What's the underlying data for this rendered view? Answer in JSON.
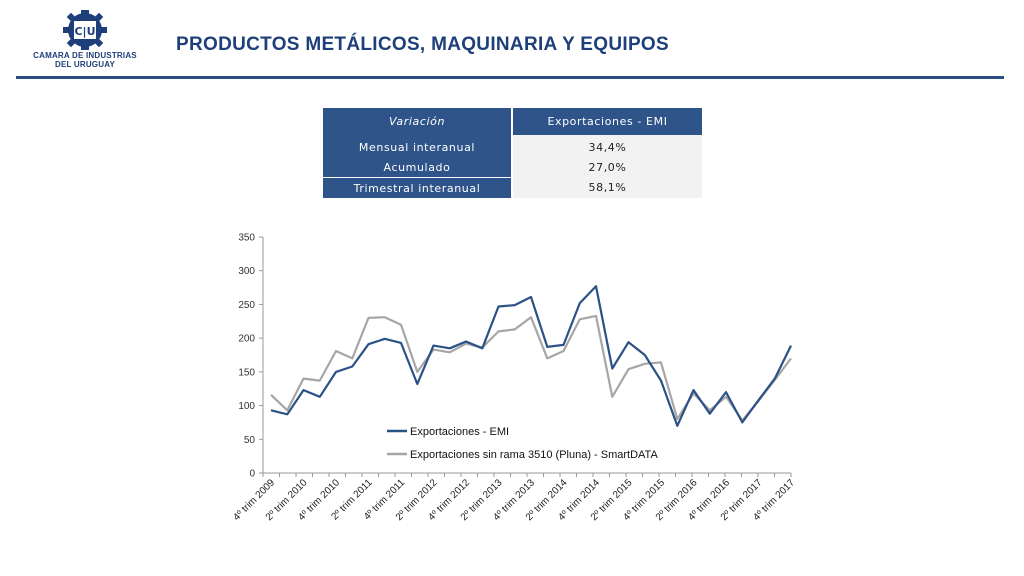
{
  "header": {
    "logo_mark": "C|U",
    "logo_line1": "CAMARA DE INDUSTRIAS",
    "logo_line2": "DEL URUGUAY",
    "title": "PRODUCTOS METÁLICOS, MAQUINARIA Y EQUIPOS",
    "accent_color": "#1f3f7a"
  },
  "table": {
    "col1_header": "Variación",
    "col2_header": "Exportaciones - EMI",
    "rows": [
      {
        "label": "Mensual interanual",
        "value": "34,4%"
      },
      {
        "label": "Acumulado",
        "value": "27,0%"
      },
      {
        "label": "Trimestral interanual",
        "value": "58,1%"
      }
    ]
  },
  "chart_data": {
    "type": "line",
    "x": [
      "4º trim 2009",
      "1º trim 2010",
      "2º trim 2010",
      "3º trim 2010",
      "4º trim 2010",
      "1º trim 2011",
      "2º trim 2011",
      "3º trim 2011",
      "4º trim 2011",
      "1º trim 2012",
      "2º trim 2012",
      "3º trim 2012",
      "4º trim 2012",
      "1º trim 2013",
      "2º trim 2013",
      "3º trim 2013",
      "4º trim 2013",
      "1º trim 2014",
      "2º trim 2014",
      "3º trim 2014",
      "4º trim 2014",
      "1º trim 2015",
      "2º trim 2015",
      "3º trim 2015",
      "4º trim 2015",
      "1º trim 2016",
      "2º trim 2016",
      "3º trim 2016",
      "4º trim 2016",
      "1º trim 2017",
      "2º trim 2017",
      "3º trim 2017",
      "4º trim 2017"
    ],
    "tick_labels": [
      "4º trim 2009",
      "2º trim 2010",
      "4º trim 2010",
      "2º trim 2011",
      "4º trim 2011",
      "2º trim 2012",
      "4º trim 2012",
      "2º trim 2013",
      "4º trim 2013",
      "2º trim 2014",
      "4º trim 2014",
      "2º trim 2015",
      "4º trim 2015",
      "2º trim 2016",
      "4º trim 2016",
      "2º trim 2017",
      "4º trim 2017"
    ],
    "series": [
      {
        "name": "Exportaciones - EMI",
        "color": "#2b5286",
        "values": [
          93,
          87,
          123,
          113,
          150,
          158,
          191,
          199,
          193,
          132,
          189,
          185,
          195,
          185,
          247,
          249,
          261,
          187,
          190,
          252,
          277,
          155,
          194,
          175,
          137,
          70,
          123,
          88,
          120,
          75,
          108,
          140,
          189
        ]
      },
      {
        "name": "Exportaciones sin rama 3510 (Pluna) - SmartDATA",
        "color": "#a6a6a6",
        "values": [
          116,
          93,
          140,
          137,
          181,
          170,
          230,
          231,
          220,
          150,
          183,
          179,
          192,
          186,
          210,
          213,
          231,
          170,
          181,
          228,
          233,
          113,
          154,
          162,
          164,
          80,
          118,
          93,
          113,
          78,
          107,
          138,
          170
        ]
      }
    ],
    "ylim": [
      0,
      350
    ],
    "yticks": [
      0,
      50,
      100,
      150,
      200,
      250,
      300,
      350
    ],
    "legend_position": "inside-bottom-center",
    "grid": false
  }
}
